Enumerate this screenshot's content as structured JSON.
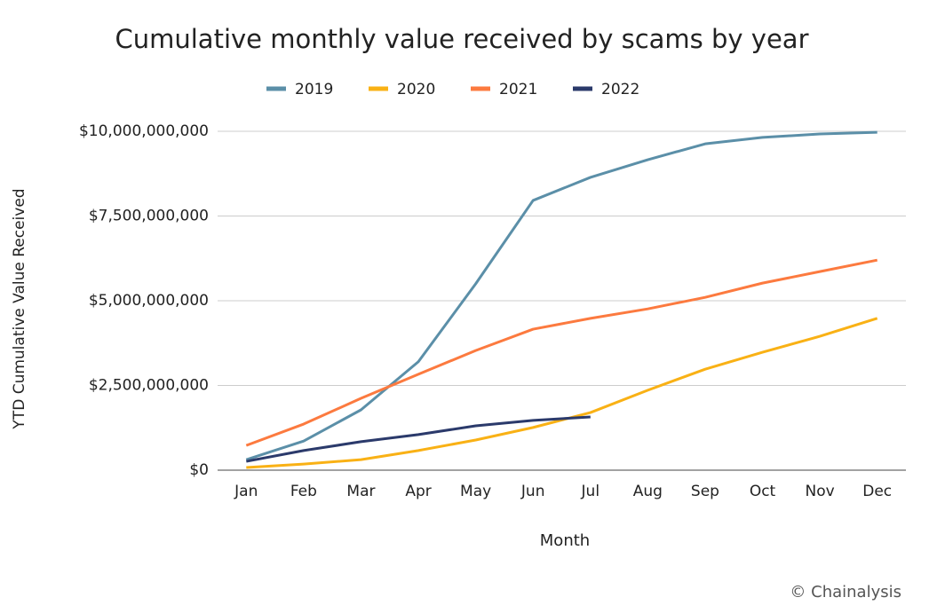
{
  "chart_data": {
    "type": "line",
    "title": "Cumulative monthly value received by scams by year",
    "x_label": "Month",
    "y_label": "YTD Cumulative Value Received",
    "source": "© Chainalysis",
    "categories": [
      "Jan",
      "Feb",
      "Mar",
      "Apr",
      "May",
      "Jun",
      "Jul",
      "Aug",
      "Sep",
      "Oct",
      "Nov",
      "Dec"
    ],
    "series": [
      {
        "name": "2019",
        "color": "#5b8fa8",
        "values": [
          310000000,
          860000000,
          1780000000,
          3200000000,
          5500000000,
          7960000000,
          8640000000,
          9160000000,
          9630000000,
          9820000000,
          9920000000,
          9970000000
        ]
      },
      {
        "name": "2020",
        "color": "#f9b115",
        "values": [
          80000000,
          180000000,
          310000000,
          580000000,
          890000000,
          1260000000,
          1700000000,
          2360000000,
          2980000000,
          3480000000,
          3950000000,
          4480000000
        ]
      },
      {
        "name": "2021",
        "color": "#fc7a3f",
        "values": [
          730000000,
          1360000000,
          2120000000,
          2830000000,
          3530000000,
          4160000000,
          4480000000,
          4760000000,
          5100000000,
          5520000000,
          5860000000,
          6200000000
        ]
      },
      {
        "name": "2022",
        "color": "#2b3a6b",
        "values": [
          260000000,
          580000000,
          840000000,
          1050000000,
          1310000000,
          1470000000,
          1570000000,
          null,
          null,
          null,
          null,
          null
        ]
      }
    ],
    "ylim": [
      0,
      10000000000
    ],
    "yticks": [
      {
        "value": 0,
        "label": "$0"
      },
      {
        "value": 2500000000,
        "label": "$2,500,000,000"
      },
      {
        "value": 5000000000,
        "label": "$5,000,000,000"
      },
      {
        "value": 7500000000,
        "label": "$7,500,000,000"
      },
      {
        "value": 10000000000,
        "label": "$10,000,000,000"
      }
    ],
    "grid": true,
    "legend": "top"
  }
}
